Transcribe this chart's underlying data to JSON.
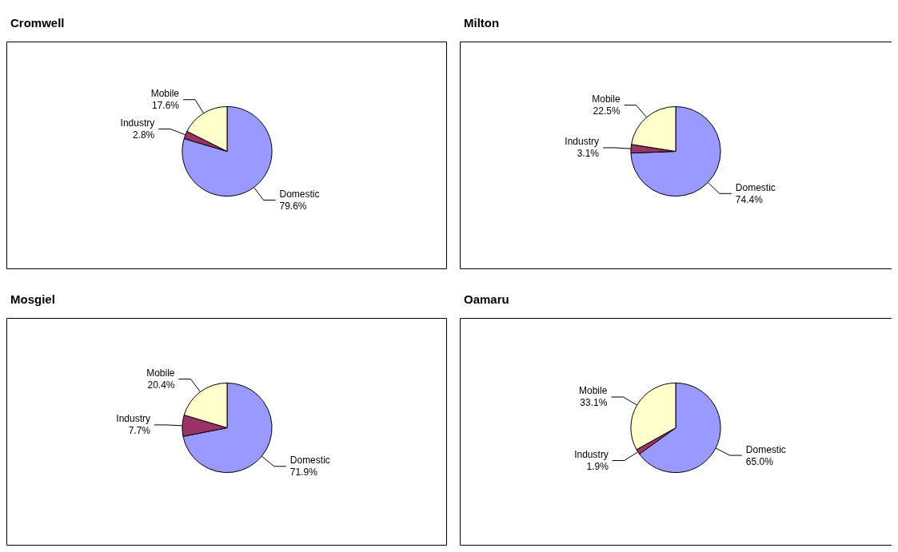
{
  "chart_data": [
    {
      "type": "pie",
      "title": "Cromwell",
      "categories": [
        "Domestic",
        "Industry",
        "Mobile"
      ],
      "values": [
        79.6,
        2.8,
        17.6
      ],
      "colors": [
        "#9999ff",
        "#993366",
        "#ffffcc"
      ],
      "value_labels": [
        "79.6%",
        "2.8%",
        "17.6%"
      ]
    },
    {
      "type": "pie",
      "title": "Milton",
      "categories": [
        "Domestic",
        "Industry",
        "Mobile"
      ],
      "values": [
        74.4,
        3.1,
        22.5
      ],
      "colors": [
        "#9999ff",
        "#993366",
        "#ffffcc"
      ],
      "value_labels": [
        "74.4%",
        "3.1%",
        "22.5%"
      ]
    },
    {
      "type": "pie",
      "title": "Mosgiel",
      "categories": [
        "Domestic",
        "Industry",
        "Mobile"
      ],
      "values": [
        71.9,
        7.7,
        20.4
      ],
      "colors": [
        "#9999ff",
        "#993366",
        "#ffffcc"
      ],
      "value_labels": [
        "71.9%",
        "7.7%",
        "20.4%"
      ]
    },
    {
      "type": "pie",
      "title": "Oamaru",
      "categories": [
        "Domestic",
        "Industry",
        "Mobile"
      ],
      "values": [
        65.0,
        1.9,
        33.1
      ],
      "colors": [
        "#9999ff",
        "#993366",
        "#ffffcc"
      ],
      "value_labels": [
        "65.0%",
        "1.9%",
        "33.1%"
      ]
    }
  ]
}
